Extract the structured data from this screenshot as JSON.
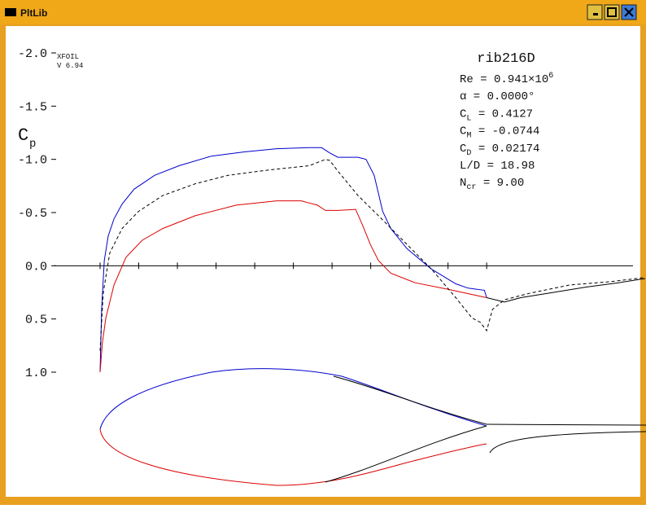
{
  "window": {
    "title": "PltLib"
  },
  "chart_data": {
    "type": "line",
    "title": "rib216D",
    "annotations": [
      "XFOIL",
      "V 6.94"
    ],
    "ylabel": "C",
    "ylabel_sub": "p",
    "info": [
      {
        "label": "Re",
        "text": " = 0.941×10",
        "sup": "6"
      },
      {
        "label": "α",
        "text": " = 0.0000°"
      },
      {
        "label": "C",
        "sub": "L",
        "text": " = 0.4127"
      },
      {
        "label": "C",
        "sub": "M",
        "text": " = -0.0744"
      },
      {
        "label": "C",
        "sub": "D",
        "text": " = 0.02174"
      },
      {
        "label": "L/D",
        "text": " = 18.98"
      },
      {
        "label": "N",
        "sub": "cr",
        "text": " = 9.00"
      }
    ],
    "xlim": [
      -0.12,
      1.41
    ],
    "xticks": [
      0,
      0.1,
      0.2,
      0.3,
      0.4,
      0.5,
      0.6,
      0.7,
      0.8,
      0.9,
      1.0
    ],
    "ylim": [
      -2.0,
      1.0
    ],
    "yticks": [
      {
        "value": -2,
        "label": "-2.0"
      },
      -1.5,
      {
        "value": -1,
        "label": "-1.0"
      },
      -0.5,
      {
        "value": 0,
        "label": "0.0"
      },
      0.5,
      {
        "value": 1,
        "label": "1.0"
      }
    ],
    "series": [
      {
        "color": "#0000cc",
        "dash": false,
        "x": [
          0,
          0.004,
          0.011,
          0.021,
          0.036,
          0.057,
          0.088,
          0.141,
          0.204,
          0.288,
          0.373,
          0.457,
          0.541,
          0.573,
          0.594,
          0.615,
          0.667,
          0.688,
          0.709,
          0.731,
          0.752,
          0.794,
          0.857,
          0.92,
          0.952,
          0.994,
          1.0
        ],
        "values": [
          1.0,
          0.41,
          -0.05,
          -0.28,
          -0.44,
          -0.58,
          -0.72,
          -0.85,
          -0.94,
          -1.03,
          -1.07,
          -1.1,
          -1.11,
          -1.11,
          -1.06,
          -1.02,
          -1.02,
          -1.0,
          -0.85,
          -0.51,
          -0.35,
          -0.16,
          0.03,
          0.17,
          0.21,
          0.23,
          0.3
        ]
      },
      {
        "color": "#dd0000",
        "dash": false,
        "x": [
          0,
          0.006,
          0.015,
          0.036,
          0.067,
          0.109,
          0.162,
          0.246,
          0.352,
          0.457,
          0.52,
          0.562,
          0.583,
          0.615,
          0.661,
          0.678,
          0.699,
          0.72,
          0.752,
          0.815,
          0.899,
          1.0
        ],
        "values": [
          1.0,
          0.72,
          0.49,
          0.18,
          -0.08,
          -0.24,
          -0.35,
          -0.47,
          -0.57,
          -0.61,
          -0.61,
          -0.57,
          -0.52,
          -0.52,
          -0.53,
          -0.39,
          -0.2,
          -0.05,
          0.07,
          0.16,
          0.22,
          0.3
        ]
      },
      {
        "color": "#000000",
        "dash": true,
        "x": [
          0,
          0.008,
          0.025,
          0.057,
          0.099,
          0.162,
          0.246,
          0.331,
          0.436,
          0.541,
          0.583,
          0.594,
          0.615,
          0.667,
          0.731,
          0.794,
          0.857,
          0.92,
          0.962,
          0.983,
          1.0,
          1.015,
          1.046,
          1.109,
          1.215,
          1.32,
          1.41
        ],
        "values": [
          0.8,
          0.26,
          -0.12,
          -0.35,
          -0.51,
          -0.66,
          -0.77,
          -0.85,
          -0.9,
          -0.94,
          -1.0,
          -0.99,
          -0.89,
          -0.66,
          -0.43,
          -0.2,
          0.03,
          0.3,
          0.49,
          0.53,
          0.61,
          0.41,
          0.32,
          0.26,
          0.18,
          0.15,
          0.11
        ]
      },
      {
        "color": "#000000",
        "dash": false,
        "x": [
          1.0,
          1.046,
          1.088,
          1.173,
          1.257,
          1.341,
          1.41
        ],
        "values": [
          0.3,
          0.34,
          0.3,
          0.25,
          0.2,
          0.16,
          0.12
        ]
      }
    ]
  }
}
